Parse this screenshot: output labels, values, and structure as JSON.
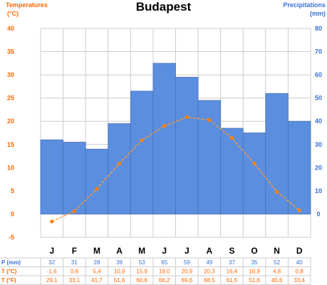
{
  "title": "Budapest",
  "left_axis": {
    "title": "Temperatures",
    "unit": "(°C)",
    "color": "#ff6600"
  },
  "right_axis": {
    "title": "Precipitations",
    "unit": "(mm)",
    "color": "#3a6fd8"
  },
  "colors": {
    "bar": "#5b8ede",
    "bar_border": "#4a72b8",
    "line": "#ff9933",
    "marker": "#ff7f0e",
    "grid": "#cccccc"
  },
  "chart_data": {
    "type": "bar",
    "categories": [
      "J",
      "F",
      "M",
      "A",
      "M",
      "J",
      "J",
      "A",
      "S",
      "O",
      "N",
      "D"
    ],
    "series": [
      {
        "name": "P (mm)",
        "axis": "right",
        "chart": "bar",
        "values": [
          32,
          31,
          28,
          39,
          53,
          65,
          59,
          49,
          37,
          35,
          52,
          40
        ]
      },
      {
        "name": "T (°C)",
        "axis": "left",
        "chart": "line",
        "values": [
          -1.6,
          0.6,
          5.4,
          10.9,
          15.9,
          19.0,
          20.9,
          20.3,
          16.4,
          10.9,
          4.8,
          0.8
        ]
      }
    ],
    "y_left": {
      "ylim": [
        -5,
        40
      ],
      "ticks": [
        -5,
        0,
        5,
        10,
        15,
        20,
        25,
        30,
        35,
        40
      ]
    },
    "y_right": {
      "ylim": [
        0,
        80
      ],
      "ticks": [
        0,
        10,
        20,
        30,
        40,
        50,
        60,
        70,
        80
      ]
    },
    "grid": true
  },
  "table": {
    "rows": [
      {
        "label": "P (mm)",
        "color": "#3a6fd8",
        "values": [
          "32",
          "31",
          "28",
          "39",
          "53",
          "65",
          "59",
          "49",
          "37",
          "35",
          "52",
          "40"
        ]
      },
      {
        "label": "T (°C)",
        "color": "#ff6600",
        "values": [
          "-1,6",
          "0,6",
          "5,4",
          "10,9",
          "15,9",
          "19,0",
          "20,9",
          "20,3",
          "16,4",
          "10,9",
          "4,8",
          "0,8"
        ]
      },
      {
        "label": "T (°F)",
        "color": "#ff6600",
        "values": [
          "29,1",
          "33,1",
          "41,7",
          "51,6",
          "60,6",
          "66,2",
          "69,6",
          "68,5",
          "61,5",
          "51,6",
          "40,6",
          "33,4"
        ]
      }
    ]
  }
}
